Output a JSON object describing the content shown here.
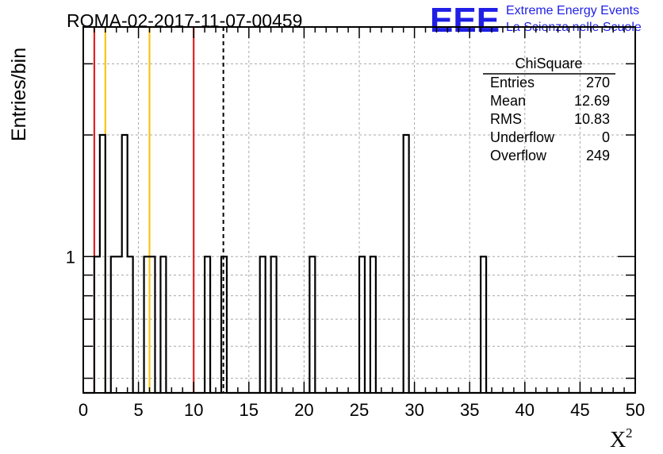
{
  "header": {
    "run_title": "ROMA-02-2017-11-07-00459",
    "logo_text": "EEE",
    "logo_line1": "Extreme Energy Events",
    "logo_line2": "La Scienza nelle Scuole"
  },
  "stats_box": {
    "name": "ChiSquare",
    "rows": [
      {
        "label": "Entries",
        "value": "270"
      },
      {
        "label": "Mean",
        "value": "12.69"
      },
      {
        "label": "RMS",
        "value": "10.83"
      },
      {
        "label": "Underflow",
        "value": "0"
      },
      {
        "label": "Overflow",
        "value": "249"
      }
    ]
  },
  "colors": {
    "histogram": "#000000",
    "red_line": "#e02020",
    "yellow_line": "#f5c518",
    "mean_line": "#000000",
    "grid": "#a8a8a8"
  },
  "chart_data": {
    "type": "bar",
    "title": "ROMA-02-2017-11-07-00459",
    "xlabel": "X",
    "xlabel_superscript": "2",
    "ylabel": "Entries/bin",
    "xlim": [
      0,
      50
    ],
    "ylim": [
      0.46,
      3.7
    ],
    "log_y": true,
    "bin_width": 0.5,
    "grid": true,
    "x_ticks": [
      "0",
      "5",
      "10",
      "15",
      "20",
      "25",
      "30",
      "35",
      "40",
      "45",
      "50"
    ],
    "y_ticks": [
      "1"
    ],
    "bins": [
      {
        "x": 1.0,
        "count": 1
      },
      {
        "x": 1.5,
        "count": 2
      },
      {
        "x": 2.5,
        "count": 1
      },
      {
        "x": 3.0,
        "count": 1
      },
      {
        "x": 3.5,
        "count": 2
      },
      {
        "x": 4.0,
        "count": 1
      },
      {
        "x": 5.5,
        "count": 1
      },
      {
        "x": 6.0,
        "count": 1
      },
      {
        "x": 7.0,
        "count": 1
      },
      {
        "x": 11.0,
        "count": 1
      },
      {
        "x": 12.5,
        "count": 1
      },
      {
        "x": 16.0,
        "count": 1
      },
      {
        "x": 17.0,
        "count": 1
      },
      {
        "x": 20.5,
        "count": 1
      },
      {
        "x": 25.0,
        "count": 1
      },
      {
        "x": 26.0,
        "count": 1
      },
      {
        "x": 29.0,
        "count": 2
      },
      {
        "x": 36.0,
        "count": 1
      }
    ],
    "vertical_lines": [
      {
        "x": 1.0,
        "color": "red"
      },
      {
        "x": 2.0,
        "color": "yellow"
      },
      {
        "x": 6.0,
        "color": "yellow"
      },
      {
        "x": 10.0,
        "color": "red"
      },
      {
        "x": 12.69,
        "color": "black",
        "style": "dashed"
      }
    ]
  }
}
